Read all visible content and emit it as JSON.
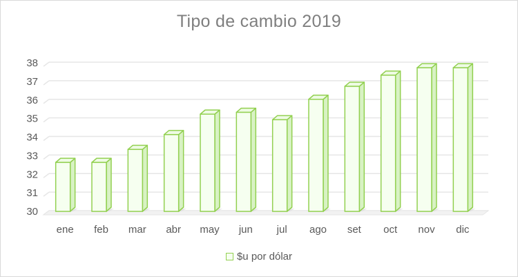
{
  "chart_data": {
    "type": "bar",
    "title": "Tipo de cambio 2019",
    "xlabel": "",
    "ylabel": "",
    "categories": [
      "ene",
      "feb",
      "mar",
      "abr",
      "may",
      "jun",
      "jul",
      "ago",
      "set",
      "oct",
      "nov",
      "dic"
    ],
    "series": [
      {
        "name": "$u por dólar",
        "values": [
          32.6,
          32.6,
          33.3,
          34.1,
          35.2,
          35.3,
          34.9,
          36.0,
          36.7,
          37.3,
          37.7,
          37.7
        ]
      }
    ],
    "ylim": [
      30,
      38
    ],
    "yticks": [
      30,
      31,
      32,
      33,
      34,
      35,
      36,
      37,
      38
    ],
    "grid": true,
    "legend_position": "bottom",
    "colors": {
      "bar_fill": "#f6fff0",
      "bar_edge": "#92d050",
      "bar_side": "#d8f2c4",
      "grid": "#e6e6e6",
      "text": "#595959",
      "title": "#7f7f7f"
    }
  }
}
